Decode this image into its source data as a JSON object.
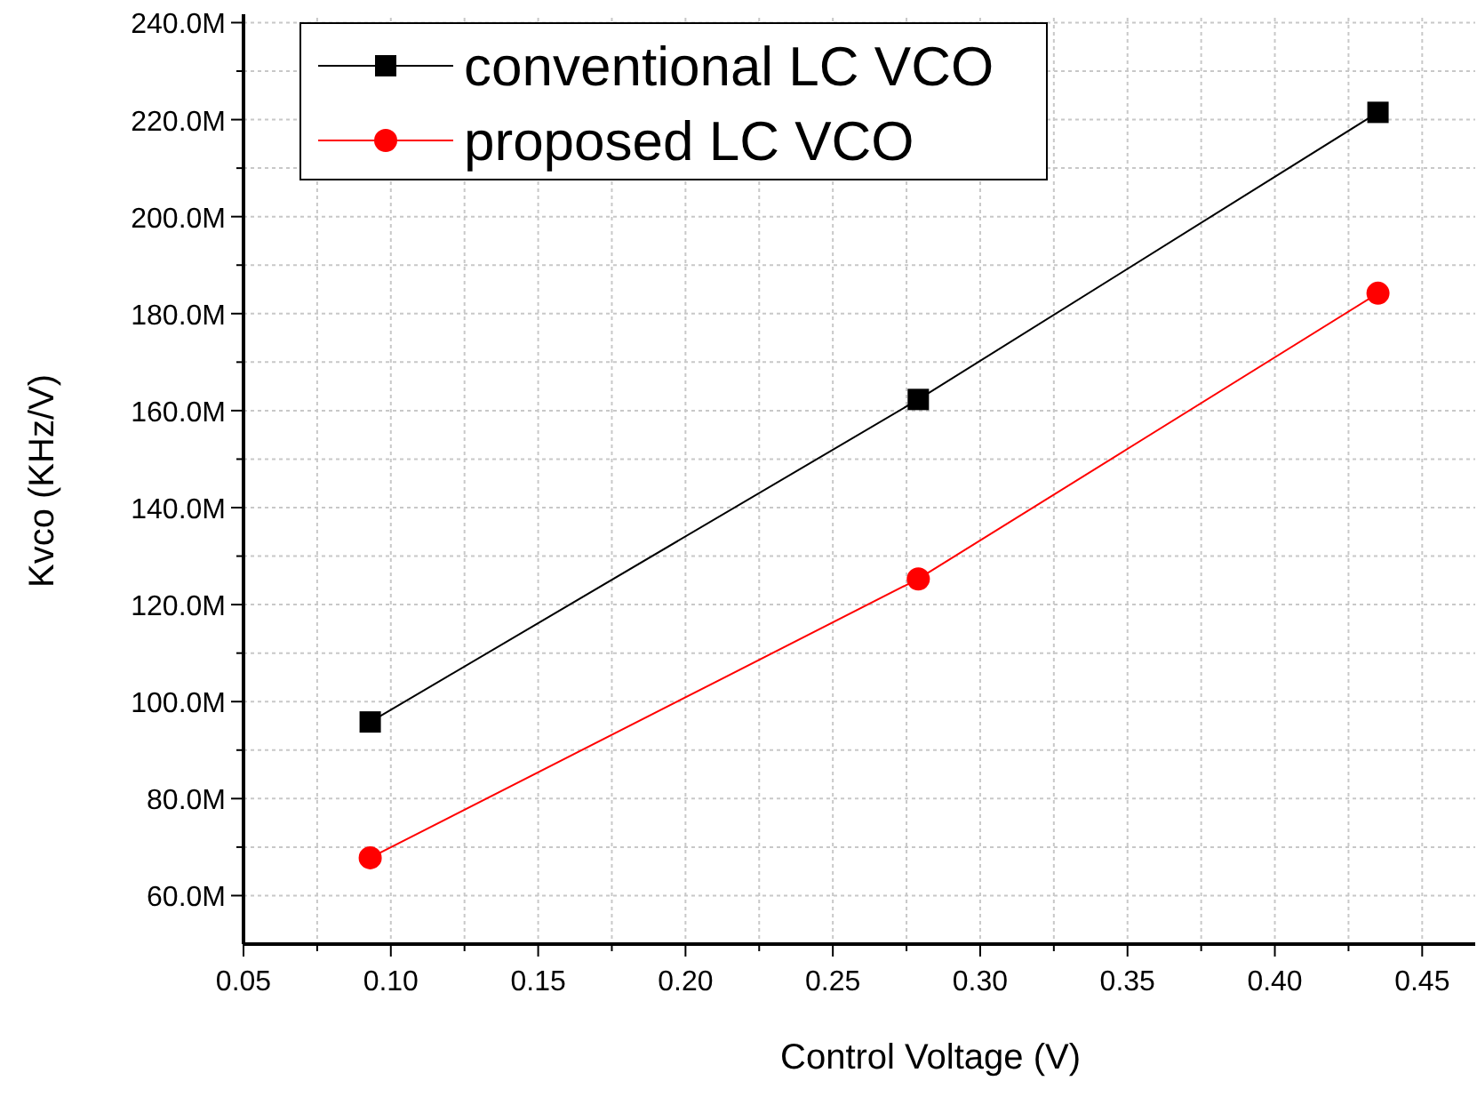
{
  "chart_data": {
    "type": "line",
    "xlabel": "Control Voltage (V)",
    "ylabel": "Kvco (KHz/V)",
    "xlim": [
      0.05,
      0.468
    ],
    "ylim": [
      50000000,
      241000000
    ],
    "xticks": [
      {
        "value": 0.05,
        "label": "0.05"
      },
      {
        "value": 0.075,
        "label": null
      },
      {
        "value": 0.1,
        "label": "0.10"
      },
      {
        "value": 0.125,
        "label": null
      },
      {
        "value": 0.15,
        "label": "0.15"
      },
      {
        "value": 0.175,
        "label": null
      },
      {
        "value": 0.2,
        "label": "0.20"
      },
      {
        "value": 0.225,
        "label": null
      },
      {
        "value": 0.25,
        "label": "0.25"
      },
      {
        "value": 0.275,
        "label": null
      },
      {
        "value": 0.3,
        "label": "0.30"
      },
      {
        "value": 0.325,
        "label": null
      },
      {
        "value": 0.35,
        "label": "0.35"
      },
      {
        "value": 0.375,
        "label": null
      },
      {
        "value": 0.4,
        "label": "0.40"
      },
      {
        "value": 0.425,
        "label": null
      },
      {
        "value": 0.45,
        "label": "0.45"
      }
    ],
    "yticks": [
      {
        "value": 60000000,
        "label": "60.0M"
      },
      {
        "value": 70000000,
        "label": null
      },
      {
        "value": 80000000,
        "label": "80.0M"
      },
      {
        "value": 90000000,
        "label": null
      },
      {
        "value": 100000000,
        "label": "100.0M"
      },
      {
        "value": 110000000,
        "label": null
      },
      {
        "value": 120000000,
        "label": "120.0M"
      },
      {
        "value": 130000000,
        "label": null
      },
      {
        "value": 140000000,
        "label": "140.0M"
      },
      {
        "value": 150000000,
        "label": null
      },
      {
        "value": 160000000,
        "label": "160.0M"
      },
      {
        "value": 170000000,
        "label": null
      },
      {
        "value": 180000000,
        "label": "180.0M"
      },
      {
        "value": 190000000,
        "label": null
      },
      {
        "value": 200000000,
        "label": "200.0M"
      },
      {
        "value": 210000000,
        "label": null
      },
      {
        "value": 220000000,
        "label": "220.0M"
      },
      {
        "value": 230000000,
        "label": null
      },
      {
        "value": 240000000,
        "label": "240.0M"
      }
    ],
    "x": [
      0.093,
      0.279,
      0.435
    ],
    "series": [
      {
        "name": "conventional LC VCO",
        "color": "#000000",
        "marker": "square",
        "values": [
          95800000,
          162300000,
          221500000
        ]
      },
      {
        "name": "proposed LC VCO",
        "color": "#ff0000",
        "marker": "circle",
        "values": [
          67800000,
          125300000,
          184200000
        ]
      }
    ],
    "grid": true,
    "legend": "top left",
    "line_style": "solid"
  }
}
